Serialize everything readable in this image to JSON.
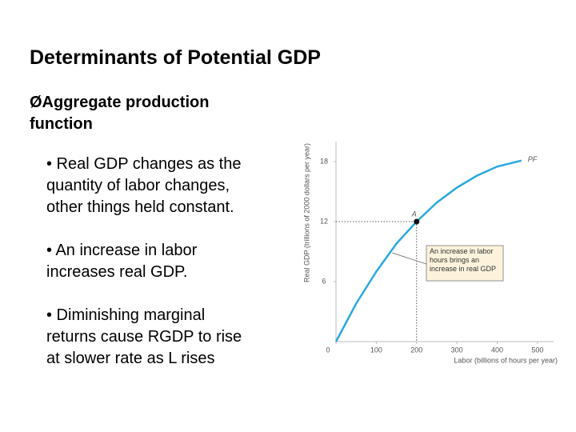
{
  "slide": {
    "title": "Determinants of Potential GDP",
    "heading": "ØAggregate production function",
    "bullets": [
      "• Real GDP changes as the quantity of labor changes, other things held constant.",
      "• An increase in labor increases real GDP.",
      "• Diminishing marginal returns cause RGDP to rise at slower rate as L rises"
    ]
  },
  "chart_data": {
    "type": "line",
    "x_label": "Labor (billions of hours per year)",
    "y_label": "Real GDP (trillions of 2000 dollars per year)",
    "series": [
      {
        "name": "PF",
        "color": "#29a8e0",
        "x": [
          0,
          50,
          100,
          150,
          200,
          250,
          300,
          350,
          400,
          460
        ],
        "values": [
          0,
          3.8,
          7,
          9.8,
          12,
          13.9,
          15.4,
          16.6,
          17.5,
          18.1
        ]
      }
    ],
    "points": [
      {
        "label": "A",
        "x": 200,
        "y": 12
      }
    ],
    "annotation": "An increase in labor hours brings an increase in real GDP",
    "xlim": [
      0,
      540
    ],
    "xticks": [
      0,
      100,
      200,
      300,
      400,
      500
    ],
    "ylim": [
      0,
      20
    ],
    "yticks": [
      6,
      12,
      18
    ]
  }
}
